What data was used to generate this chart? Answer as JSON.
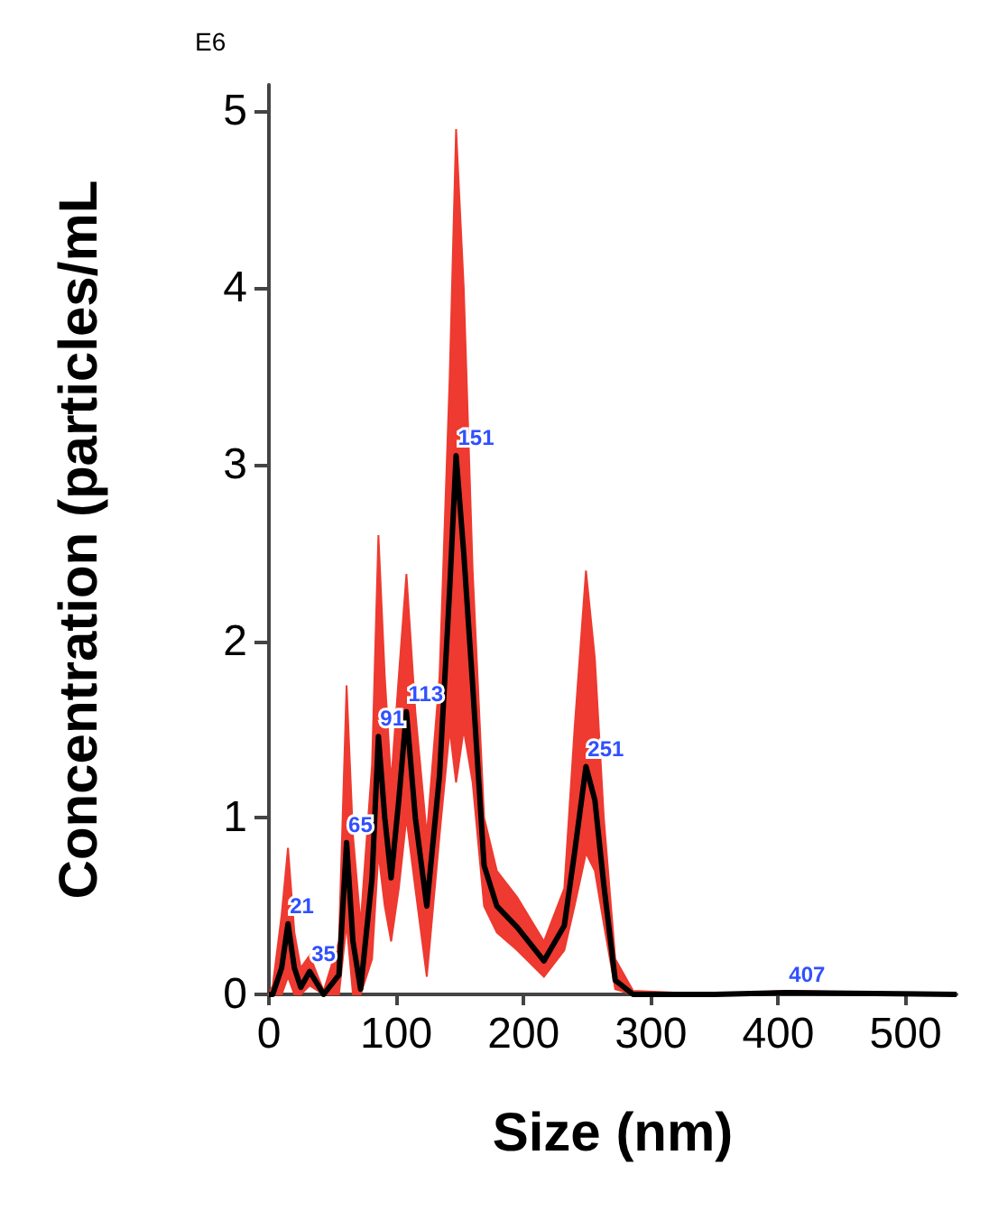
{
  "chart_data": {
    "type": "line",
    "xlabel": "Size (nm)",
    "ylabel": "Concentration (particles/mL",
    "x": [
      0,
      3,
      10,
      15,
      20,
      25,
      32,
      43,
      55,
      61,
      66,
      72,
      81,
      86,
      91,
      96,
      102,
      108,
      115,
      124,
      134,
      142,
      147,
      153,
      160,
      169,
      179,
      195,
      216,
      232,
      240,
      249,
      256,
      263,
      272,
      286,
      350,
      407,
      540
    ],
    "series": [
      {
        "color": "#000000",
        "values": [
          0,
          0,
          0.15,
          0.4,
          0.15,
          0.04,
          0.13,
          0,
          0.11,
          0.86,
          0.3,
          0.03,
          0.66,
          1.46,
          1.0,
          0.66,
          1.1,
          1.6,
          1.0,
          0.5,
          1.24,
          2.3,
          3.05,
          2.5,
          1.75,
          0.73,
          0.5,
          0.38,
          0.19,
          0.39,
          0.8,
          1.29,
          1.1,
          0.62,
          0.08,
          0,
          0,
          0.01,
          0
        ],
        "lower": [
          0,
          0,
          0,
          0.1,
          0,
          0,
          0.05,
          0,
          0,
          0.4,
          0,
          0,
          0.2,
          0.8,
          0.5,
          0.3,
          0.6,
          1.0,
          0.6,
          0.1,
          0.9,
          1.5,
          1.2,
          1.5,
          1.2,
          0.5,
          0.35,
          0.25,
          0.1,
          0.25,
          0.5,
          0.8,
          0.7,
          0.4,
          0.03,
          0,
          0,
          0,
          0
        ],
        "upper": [
          0,
          0.05,
          0.45,
          0.83,
          0.35,
          0.15,
          0.22,
          0.02,
          0.3,
          1.75,
          0.9,
          0.4,
          1.3,
          2.6,
          1.8,
          1.2,
          1.8,
          2.38,
          1.6,
          0.9,
          1.8,
          3.5,
          4.9,
          4.0,
          2.4,
          1.0,
          0.7,
          0.55,
          0.3,
          0.6,
          1.5,
          2.4,
          1.9,
          1.0,
          0.2,
          0.02,
          0,
          0.02,
          0
        ]
      }
    ],
    "xlim": [
      0,
      540
    ],
    "xticks": [
      0,
      100,
      200,
      300,
      400,
      500
    ],
    "ylim": [
      0,
      5.15
    ],
    "yticks": [
      0,
      1,
      2,
      3,
      4,
      5
    ],
    "grid": false,
    "marker": "none",
    "line_style": "solid",
    "annotations": [
      "E6",
      {
        "text": "21",
        "x": 15,
        "y": 0.4
      },
      {
        "text": "35",
        "x": 32,
        "y": 0.13
      },
      {
        "text": "65",
        "x": 61,
        "y": 0.86
      },
      {
        "text": "91",
        "x": 86,
        "y": 1.46
      },
      {
        "text": "113",
        "x": 108,
        "y": 1.6
      },
      {
        "text": "151",
        "x": 147,
        "y": 3.05
      },
      {
        "text": "251",
        "x": 249,
        "y": 1.29
      },
      {
        "text": "407",
        "x": 407,
        "y": 0.01
      }
    ]
  }
}
